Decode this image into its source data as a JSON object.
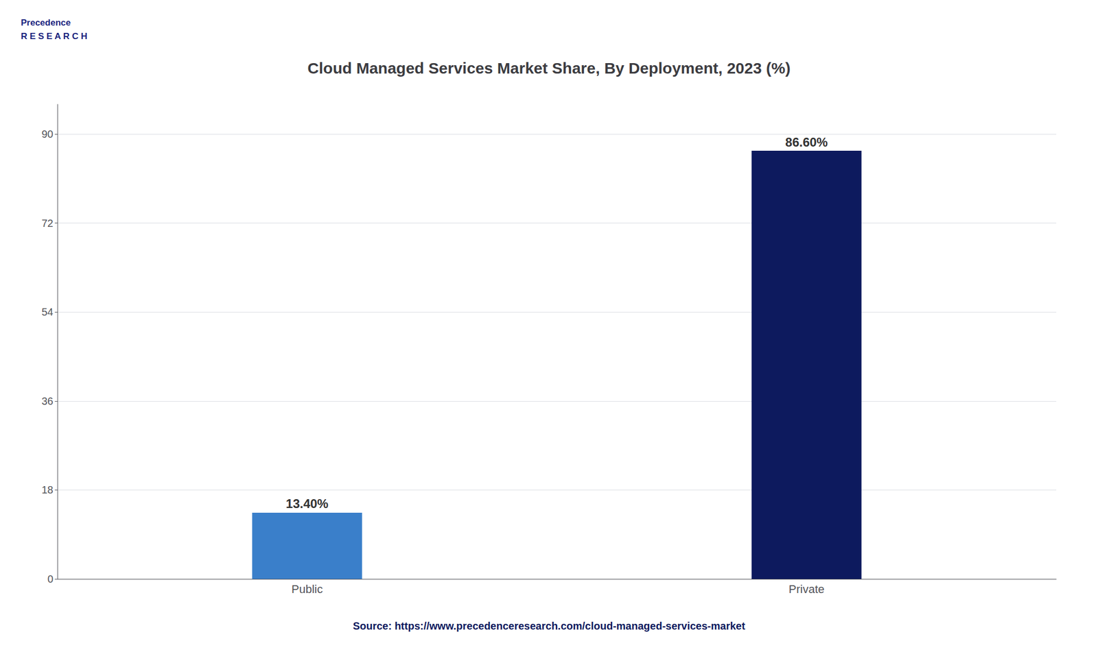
{
  "chart_data": {
    "type": "bar",
    "title": "Cloud Managed Services Market Share, By Deployment, 2023 (%)",
    "categories": [
      "Public",
      "Private"
    ],
    "values": [
      13.4,
      86.6
    ],
    "value_labels": [
      "13.40%",
      "86.60%"
    ],
    "data_labels": true,
    "colors": [
      "#3a7fca",
      "#0d1a5e"
    ],
    "ylim": [
      0,
      96
    ],
    "yticks": [
      0,
      18,
      36,
      54,
      72,
      90
    ],
    "grid": true,
    "annotations": [
      "Precedence\nR E S E A R C H",
      "Source: https://www.precedenceresearch.com/cloud-managed-services-market"
    ]
  }
}
